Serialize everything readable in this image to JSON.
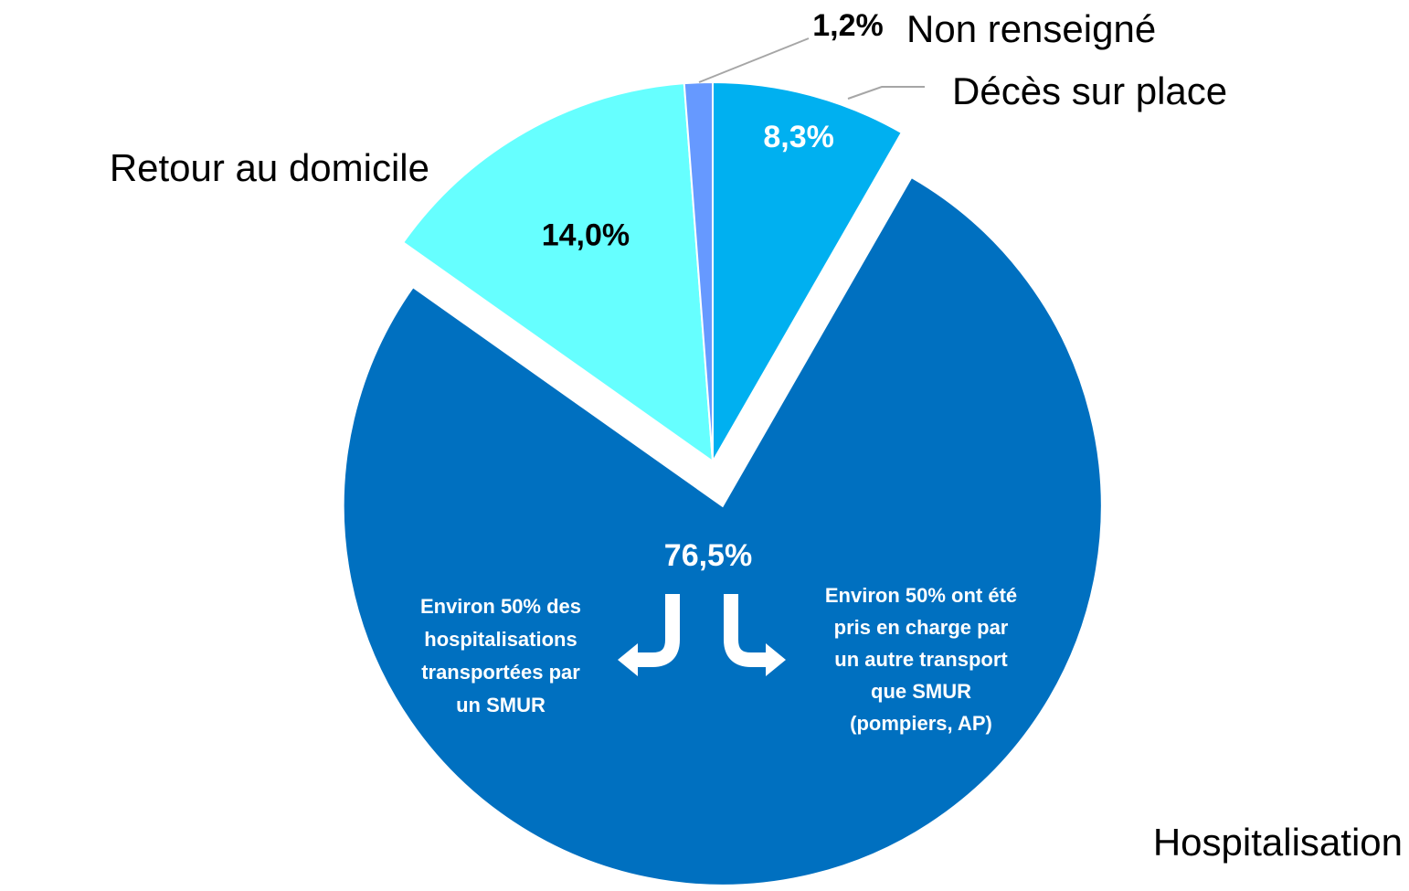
{
  "chart_data": {
    "type": "pie",
    "categories": [
      "Décès sur place",
      "Hospitalisation",
      "Retour au domicile",
      "Non renseigné"
    ],
    "values": [
      8.3,
      76.5,
      14.0,
      1.2
    ],
    "value_labels": [
      "8,3%",
      "76,5%",
      "14,0%",
      "1,2%"
    ],
    "colors": [
      "#00b0f0",
      "#0070c0",
      "#66ffff",
      "#6699ff"
    ],
    "exploded": [
      "Hospitalisation"
    ],
    "annotations": [
      [
        "Environ 50% des",
        "hospitalisations",
        "transportées par",
        "un SMUR"
      ],
      [
        "Environ 50% ont été",
        "pris en charge par",
        "un autre transport",
        "que SMUR",
        "(pompiers, AP)"
      ]
    ]
  }
}
